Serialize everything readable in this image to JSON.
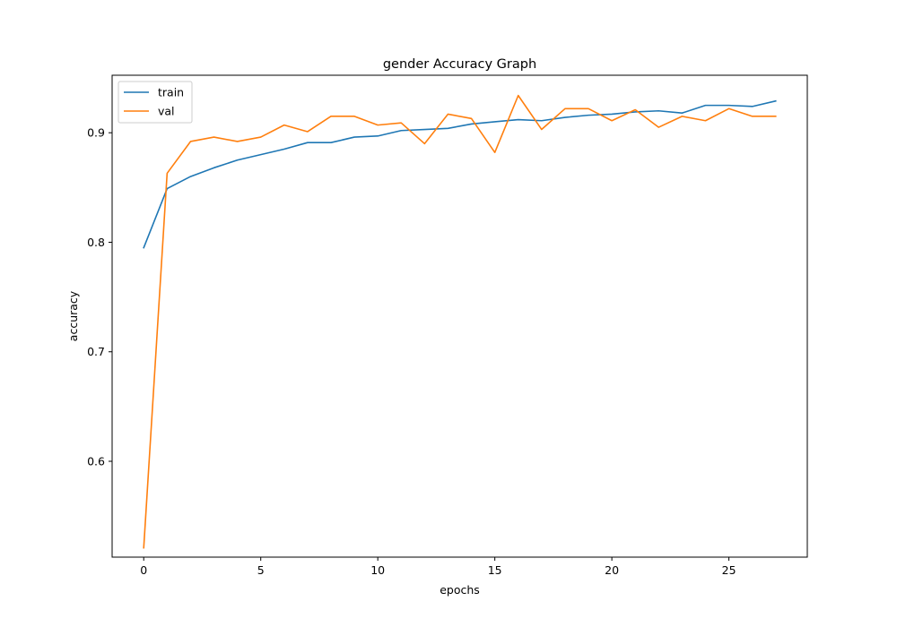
{
  "chart_data": {
    "type": "line",
    "title": "gender Accuracy Graph",
    "xlabel": "epochs",
    "ylabel": "accuracy",
    "xlim": [
      -1.35,
      28.35
    ],
    "ylim": [
      0.5125,
      0.9525
    ],
    "xticks": [
      0,
      5,
      10,
      15,
      20,
      25
    ],
    "yticks": [
      0.6,
      0.7,
      0.8,
      0.9
    ],
    "grid": false,
    "legend": "top-left",
    "x": [
      0,
      1,
      2,
      3,
      4,
      5,
      6,
      7,
      8,
      9,
      10,
      11,
      12,
      13,
      14,
      15,
      16,
      17,
      18,
      19,
      20,
      21,
      22,
      23,
      24,
      25,
      26,
      27
    ],
    "series": [
      {
        "name": "train",
        "color": "#1f77b4",
        "values": [
          0.795,
          0.849,
          0.86,
          0.868,
          0.875,
          0.88,
          0.885,
          0.891,
          0.891,
          0.896,
          0.897,
          0.902,
          0.903,
          0.904,
          0.908,
          0.91,
          0.912,
          0.911,
          0.914,
          0.916,
          0.917,
          0.919,
          0.92,
          0.918,
          0.925,
          0.925,
          0.924,
          0.929
        ]
      },
      {
        "name": "val",
        "color": "#ff7f0e",
        "values": [
          0.521,
          0.863,
          0.892,
          0.896,
          0.892,
          0.896,
          0.907,
          0.901,
          0.915,
          0.915,
          0.907,
          0.909,
          0.89,
          0.917,
          0.913,
          0.882,
          0.934,
          0.903,
          0.922,
          0.922,
          0.911,
          0.921,
          0.905,
          0.915,
          0.911,
          0.922,
          0.915,
          0.915
        ]
      }
    ]
  }
}
